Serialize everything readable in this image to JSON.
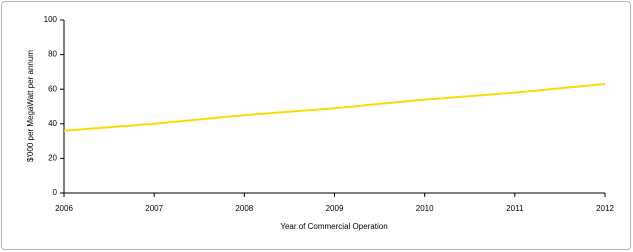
{
  "chart_data": {
    "type": "line",
    "x_label": "Year of Commercial Operation",
    "y_label": "$'000 per MegaWatt per annum",
    "x": [
      2006,
      2007,
      2008,
      2009,
      2010,
      2011,
      2012
    ],
    "values": [
      36,
      40,
      45,
      49,
      54,
      58,
      63
    ],
    "color": "#f7dc00",
    "xlim": [
      2006,
      2012
    ],
    "xticks": [
      2006,
      2007,
      2008,
      2009,
      2010,
      2011,
      2012
    ],
    "ylim": [
      0,
      100
    ],
    "yticks": [
      0,
      20,
      40,
      60,
      80,
      100
    ],
    "grid": false
  }
}
